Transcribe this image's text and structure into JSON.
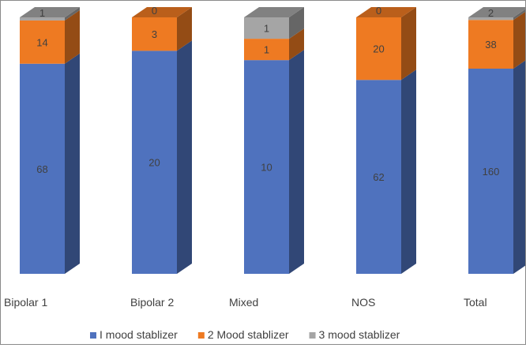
{
  "chart_data": {
    "type": "bar",
    "stacked": true,
    "style": "3d-column",
    "categories": [
      "Bipolar 1",
      "Bipolar 2",
      "Mixed",
      "NOS",
      "Total"
    ],
    "series": [
      {
        "name": "I mood stablizer",
        "color": "#4f72be",
        "values": [
          68,
          20,
          10,
          62,
          160
        ],
        "labels": [
          "68",
          "20",
          "10",
          "62",
          "160"
        ]
      },
      {
        "name": "2 Mood stablizer",
        "color": "#ee7a22",
        "values": [
          14,
          3,
          1,
          20,
          38
        ],
        "labels": [
          "14",
          "3",
          "1",
          "20",
          "38"
        ]
      },
      {
        "name": "3 mood stablizer",
        "color": "#a5a5a5",
        "values": [
          1,
          0,
          1,
          0,
          2
        ],
        "labels": [
          "1",
          "0",
          "1",
          "0",
          "2"
        ]
      }
    ],
    "normalized": true,
    "legend_position": "bottom",
    "gridlines": false
  }
}
